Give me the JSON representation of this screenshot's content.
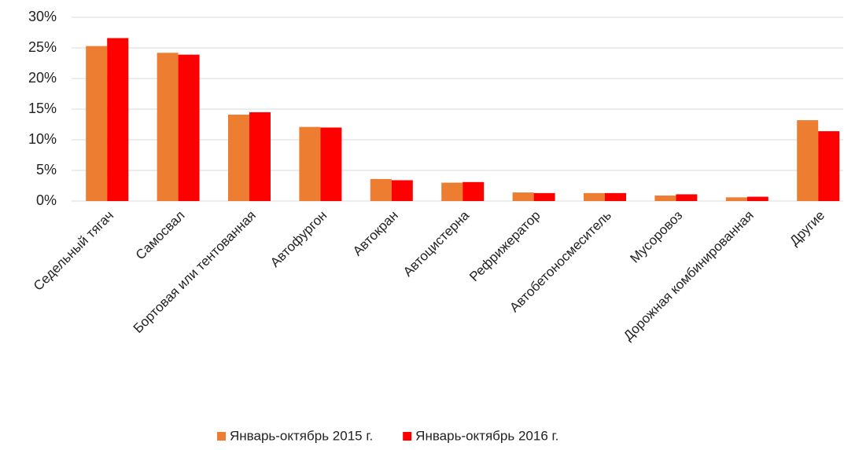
{
  "chart_data": {
    "type": "bar",
    "categories": [
      "Седельный тягач",
      "Самосвал",
      "Бортовая или тентованная",
      "Автофургон",
      "Автокран",
      "Автоцистерна",
      "Рефрижератор",
      "Автобетоносмеситель",
      "Мусоровоз",
      "Дорожная комбинированная",
      "Другие"
    ],
    "series": [
      {
        "name": "Январь-октябрь 2015 г.",
        "color": "#ed7d31",
        "values": [
          25.3,
          24.2,
          14.1,
          12.1,
          3.6,
          3.0,
          1.4,
          1.3,
          0.9,
          0.6,
          13.2
        ]
      },
      {
        "name": "Январь-октябрь 2016 г.",
        "color": "#ff0000",
        "values": [
          26.6,
          23.9,
          14.5,
          12.0,
          3.4,
          3.1,
          1.3,
          1.3,
          1.1,
          0.7,
          11.4
        ]
      }
    ],
    "ylim": [
      0,
      30
    ],
    "yticks": [
      {
        "value": 0,
        "label": "0%"
      },
      {
        "value": 5,
        "label": "5%"
      },
      {
        "value": 10,
        "label": "10%"
      },
      {
        "value": 15,
        "label": "15%"
      },
      {
        "value": 20,
        "label": "20%"
      },
      {
        "value": 25,
        "label": "25%"
      },
      {
        "value": 30,
        "label": "30%"
      }
    ],
    "grid": true,
    "legend": "bottom"
  }
}
